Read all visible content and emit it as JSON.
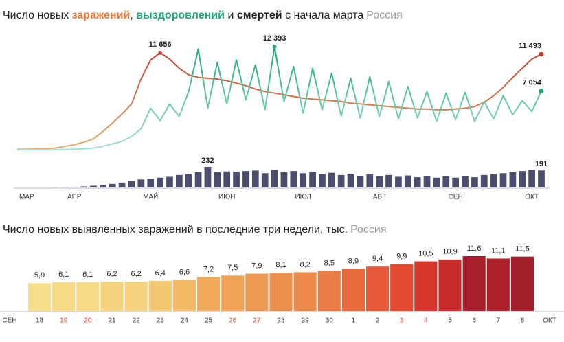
{
  "chart_data": [
    {
      "type": "line",
      "title": [
        "Число новых",
        ",",
        "и",
        "с начала марта"
      ],
      "subtitle": "Россия",
      "categories": [
        null,
        "МАР",
        null,
        null,
        null,
        null,
        "АПР",
        null,
        null,
        null,
        null,
        null,
        null,
        null,
        "МАЙ",
        null,
        null,
        null,
        null,
        null,
        null,
        null,
        "ИЮН",
        null,
        null,
        null,
        null,
        null,
        null,
        null,
        "ИЮЛ",
        null,
        null,
        null,
        null,
        null,
        null,
        null,
        "АВГ",
        null,
        null,
        null,
        null,
        null,
        null,
        null,
        "СЕН",
        null,
        null,
        null,
        null,
        null,
        null,
        null,
        "ОКТ",
        null
      ],
      "series": [
        {
          "name": "заражений",
          "type": "line",
          "colors": [
            "#e6b06a",
            "#c23b2b"
          ],
          "values": [
            50,
            60,
            80,
            100,
            200,
            400,
            600,
            900,
            1300,
            2200,
            3200,
            4300,
            5500,
            8500,
            10800,
            11656,
            10900,
            9800,
            9000,
            8700,
            8600,
            8500,
            8300,
            8000,
            7700,
            7300,
            7000,
            6800,
            6600,
            6400,
            6200,
            6100,
            6000,
            5900,
            5800,
            5600,
            5500,
            5400,
            5300,
            5200,
            5100,
            5000,
            4900,
            4900,
            4800,
            4800,
            4900,
            5000,
            5200,
            5700,
            6500,
            7500,
            8700,
            9800,
            10900,
            11493
          ],
          "value_labels": [
            null,
            null,
            null,
            null,
            null,
            null,
            null,
            null,
            null,
            null,
            null,
            null,
            null,
            null,
            null,
            "11 656",
            null,
            null,
            null,
            null,
            null,
            null,
            null,
            null,
            null,
            null,
            null,
            null,
            null,
            null,
            null,
            null,
            null,
            null,
            null,
            null,
            null,
            null,
            null,
            null,
            null,
            null,
            null,
            null,
            null,
            null,
            null,
            null,
            null,
            null,
            null,
            null,
            null,
            null,
            null,
            "11 493"
          ]
        },
        {
          "name": "выздоровлений",
          "type": "line",
          "colors": [
            "#a3e2dc",
            "#1ea777"
          ],
          "values": [
            0,
            0,
            0,
            0,
            10,
            30,
            60,
            100,
            200,
            400,
            700,
            1000,
            1600,
            2500,
            5000,
            3500,
            5500,
            4000,
            7000,
            12100,
            5000,
            10500,
            5500,
            10800,
            6000,
            10200,
            4800,
            12393,
            5800,
            10000,
            4400,
            9800,
            4800,
            9200,
            4000,
            8600,
            3800,
            8800,
            4000,
            8200,
            3700,
            7600,
            3800,
            7000,
            3400,
            6800,
            3600,
            6900,
            3400,
            5800,
            3700,
            6500,
            4200,
            5900,
            4600,
            7054
          ],
          "value_labels": [
            null,
            null,
            null,
            null,
            null,
            null,
            null,
            null,
            null,
            null,
            null,
            null,
            null,
            null,
            null,
            null,
            null,
            null,
            null,
            null,
            null,
            null,
            null,
            null,
            null,
            null,
            null,
            "12 393",
            null,
            null,
            null,
            null,
            null,
            null,
            null,
            null,
            null,
            null,
            null,
            null,
            null,
            null,
            null,
            null,
            null,
            null,
            null,
            null,
            null,
            null,
            null,
            null,
            null,
            null,
            null,
            "7 054"
          ]
        },
        {
          "name": "смертей",
          "type": "bar",
          "colors": [
            "#4a4d6e",
            "#4a4d6e"
          ],
          "values": [
            0,
            0,
            0,
            0,
            1,
            3,
            8,
            12,
            20,
            28,
            40,
            55,
            70,
            90,
            100,
            110,
            120,
            140,
            150,
            170,
            232,
            170,
            180,
            175,
            185,
            190,
            160,
            195,
            170,
            185,
            160,
            175,
            150,
            165,
            140,
            155,
            130,
            150,
            125,
            140,
            120,
            135,
            115,
            130,
            110,
            125,
            110,
            130,
            115,
            140,
            150,
            160,
            170,
            185,
            195,
            191
          ],
          "value_labels": [
            null,
            null,
            null,
            null,
            null,
            null,
            null,
            null,
            null,
            null,
            null,
            null,
            null,
            null,
            null,
            null,
            null,
            null,
            null,
            null,
            "232",
            null,
            null,
            null,
            null,
            null,
            null,
            null,
            null,
            null,
            null,
            null,
            null,
            null,
            null,
            null,
            null,
            null,
            null,
            null,
            null,
            null,
            null,
            null,
            null,
            null,
            null,
            null,
            null,
            null,
            null,
            null,
            null,
            null,
            null,
            "191"
          ]
        }
      ]
    },
    {
      "type": "bar",
      "title": "Число новых выявленных заражений в последние три недели, тыс.",
      "subtitle": "Россия",
      "month_labels": [
        "СЕН",
        "ОКТ"
      ],
      "categories": [
        "18",
        "19",
        "20",
        "21",
        "22",
        "23",
        "24",
        "25",
        "26",
        "27",
        "28",
        "29",
        "30",
        "1",
        "2",
        "3",
        "4",
        "5",
        "6",
        "7",
        "8"
      ],
      "category_colors": [
        "#333",
        "#e0452a",
        "#e0452a",
        "#333",
        "#333",
        "#333",
        "#333",
        "#333",
        "#e0452a",
        "#e0452a",
        "#333",
        "#333",
        "#333",
        "#333",
        "#333",
        "#e0452a",
        "#e0452a",
        "#333",
        "#333",
        "#333",
        "#333"
      ],
      "values": [
        5.9,
        6.1,
        6.1,
        6.2,
        6.2,
        6.4,
        6.6,
        7.2,
        7.5,
        7.9,
        8.1,
        8.2,
        8.5,
        8.9,
        9.4,
        9.9,
        10.5,
        10.9,
        11.6,
        11.1,
        11.5
      ],
      "value_labels": [
        "5,9",
        "6,1",
        "6,1",
        "6,2",
        "6,2",
        "6,4",
        "6,6",
        "7,2",
        "7,5",
        "7,9",
        "8,1",
        "8,2",
        "8,5",
        "8,9",
        "9,4",
        "9,9",
        "10,5",
        "10,9",
        "11,6",
        "11,1",
        "11,5"
      ],
      "colors": [
        "#f8df8c",
        "#f7da86",
        "#f7da86",
        "#f6d47f",
        "#f6d47f",
        "#f4c772",
        "#f3bb68",
        "#f1aa5c",
        "#f0a257",
        "#ee9952",
        "#ec904d",
        "#eb8a4a",
        "#e97c44",
        "#e86c3e",
        "#e65a38",
        "#e24a32",
        "#d6352b",
        "#c72c2a",
        "#a61f2b",
        "#b0222b",
        "#a21e2a"
      ]
    }
  ]
}
